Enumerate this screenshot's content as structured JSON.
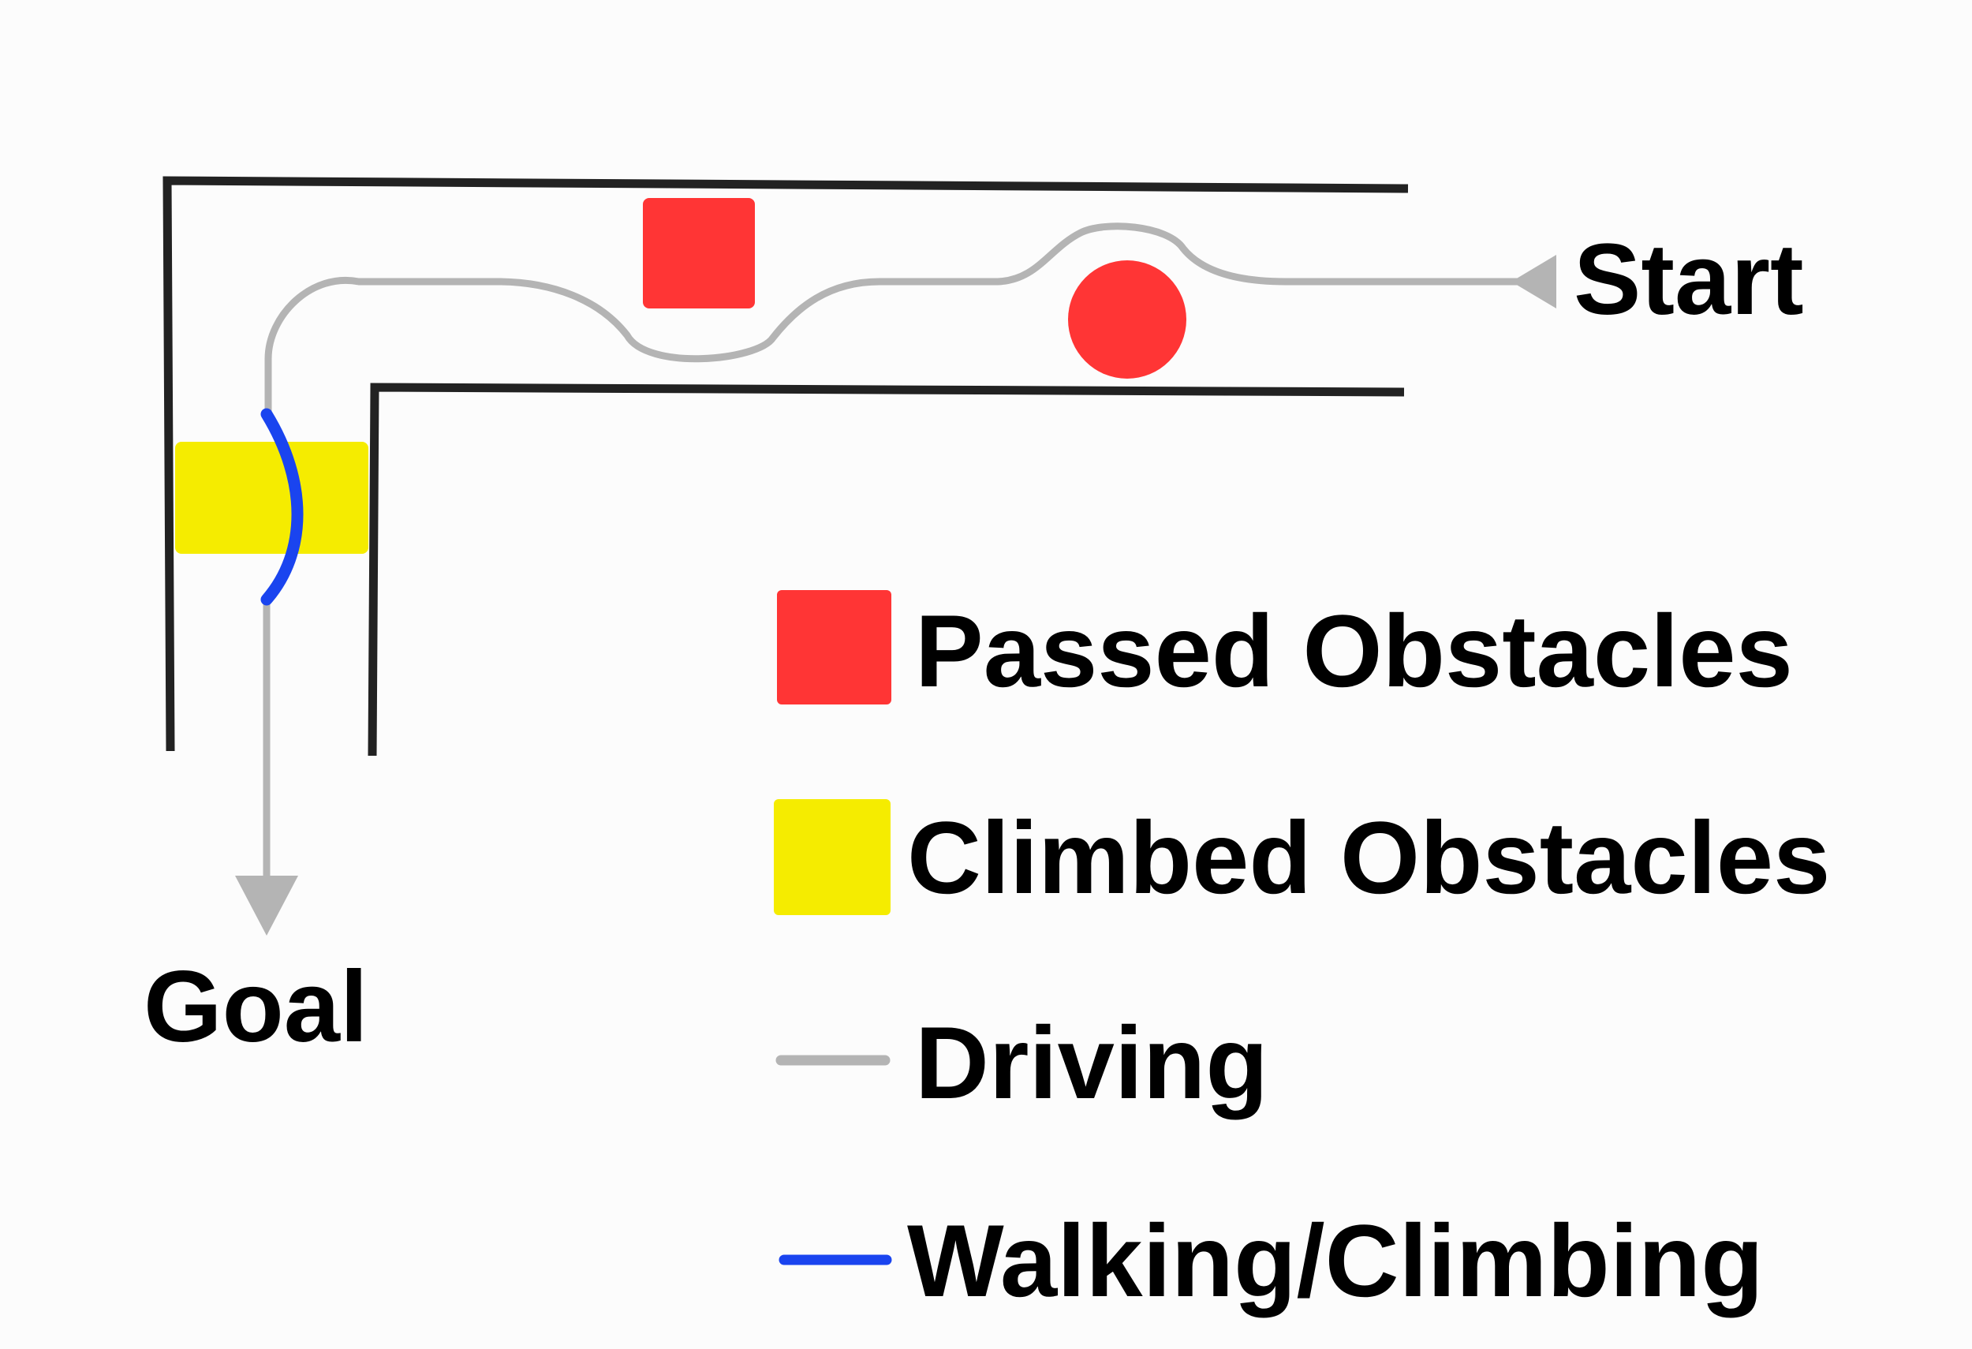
{
  "labels": {
    "start": "Start",
    "goal": "Goal"
  },
  "legend": {
    "items": [
      {
        "key": "passed",
        "label": "Passed Obstacles",
        "color": "#ff3535",
        "swatch": "square"
      },
      {
        "key": "climbed",
        "label": "Climbed Obstacles",
        "color": "#f5ec00",
        "swatch": "square"
      },
      {
        "key": "driving",
        "label": "Driving",
        "color": "#b4b4b4",
        "swatch": "line"
      },
      {
        "key": "walking",
        "label": "Walking/Climbing",
        "color": "#1a44ef",
        "swatch": "line"
      }
    ]
  },
  "colors": {
    "background": "#fcfcfc",
    "wall": "#222222",
    "passed_obstacle": "#ff3535",
    "climbed_obstacle": "#f5ec00",
    "driving_path": "#b4b4b4",
    "walking_path": "#1a44ef"
  }
}
